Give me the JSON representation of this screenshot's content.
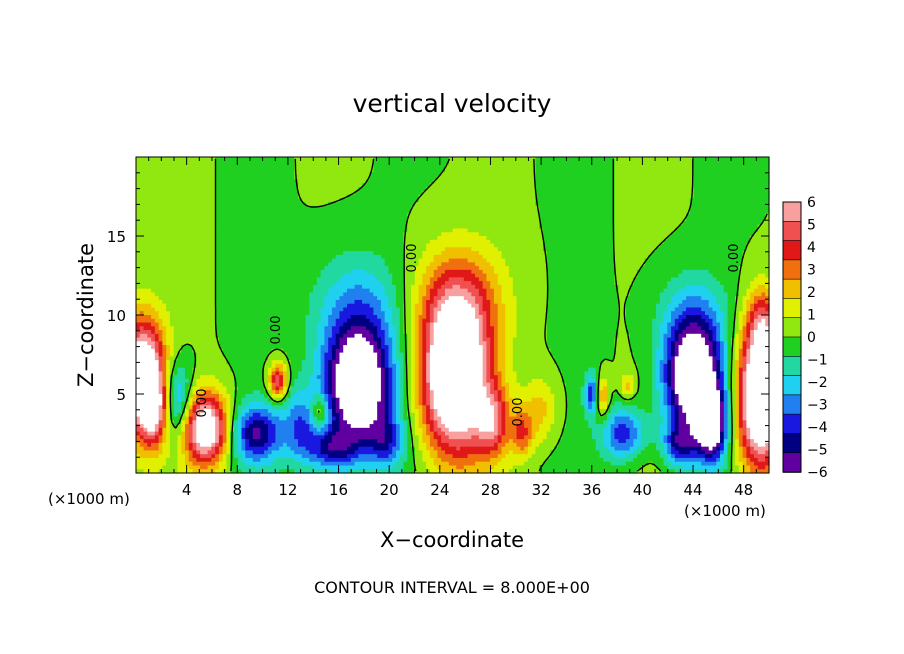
{
  "chart_data": {
    "type": "heatmap",
    "title": "vertical velocity",
    "xlabel": "X−coordinate",
    "ylabel": "Z−coordinate",
    "x_unit_left": "(×1000 m)",
    "x_unit_right": "(×1000 m)",
    "xlim": [
      0,
      50
    ],
    "ylim": [
      0,
      20
    ],
    "x_ticks": [
      4,
      8,
      12,
      16,
      20,
      24,
      28,
      32,
      36,
      40,
      44,
      48
    ],
    "y_ticks": [
      5,
      10,
      15
    ],
    "colorbar": {
      "min": -6,
      "max": 6,
      "tick_values": [
        6,
        5,
        4,
        3,
        2,
        1,
        0,
        -1,
        -2,
        -3,
        -4,
        -5,
        -6
      ],
      "tick_labels": [
        "6",
        "5",
        "4",
        "3",
        "2",
        "1",
        "0",
        "−1",
        "−2",
        "−3",
        "−4",
        "−5",
        "−6"
      ],
      "colors": [
        "#f8a0a0",
        "#f05050",
        "#e01818",
        "#f07010",
        "#f0c000",
        "#e0f000",
        "#90e810",
        "#20d020",
        "#20d8a0",
        "#20d0f0",
        "#2080f0",
        "#1818e0",
        "#000080",
        "#6000a0"
      ]
    },
    "contour_label": "0.00",
    "footer": "CONTOUR INTERVAL = 8.000E+00",
    "features": [
      {
        "x": 0.5,
        "z": 6.0,
        "w": 9,
        "sx": 1.3,
        "sz": 2.6
      },
      {
        "x": 1.5,
        "z": 4.0,
        "w": 4,
        "sx": 0.7,
        "sz": 1.5
      },
      {
        "x": 3.2,
        "z": 4.5,
        "w": -4,
        "sx": 0.9,
        "sz": 1.8
      },
      {
        "x": 5.5,
        "z": 2.8,
        "w": 8,
        "sx": 1.3,
        "sz": 1.6
      },
      {
        "x": 9.5,
        "z": 2.5,
        "w": -5,
        "sx": 1.4,
        "sz": 1.3
      },
      {
        "x": 11.2,
        "z": 5.8,
        "w": 5,
        "sx": 0.5,
        "sz": 0.8
      },
      {
        "x": 13.0,
        "z": 3.0,
        "w": -3,
        "sx": 1.0,
        "sz": 1.6
      },
      {
        "x": 14.5,
        "z": 3.8,
        "w": 3,
        "sx": 0.5,
        "sz": 0.8
      },
      {
        "x": 15.5,
        "z": 1.5,
        "w": -4,
        "sx": 1.5,
        "sz": 1.0
      },
      {
        "x": 17.5,
        "z": 5.5,
        "w": -9,
        "sx": 1.9,
        "sz": 2.6
      },
      {
        "x": 17.5,
        "z": 10.5,
        "w": -2.5,
        "sx": 2.5,
        "sz": 2.5
      },
      {
        "x": 19.8,
        "z": 2.0,
        "w": -3,
        "sx": 1.0,
        "sz": 1.2
      },
      {
        "x": 25.2,
        "z": 6.0,
        "w": 10,
        "sx": 1.9,
        "sz": 3.4
      },
      {
        "x": 25.5,
        "z": 11.0,
        "w": 3,
        "sx": 2.5,
        "sz": 2.5
      },
      {
        "x": 28.2,
        "z": 3.2,
        "w": 4,
        "sx": 0.9,
        "sz": 1.5
      },
      {
        "x": 30.5,
        "z": 2.5,
        "w": 3,
        "sx": 0.6,
        "sz": 1.1
      },
      {
        "x": 32.0,
        "z": 4.0,
        "w": 2,
        "sx": 1.0,
        "sz": 1.5
      },
      {
        "x": 36.0,
        "z": 5.0,
        "w": -4,
        "sx": 0.4,
        "sz": 0.9
      },
      {
        "x": 36.8,
        "z": 4.8,
        "w": 3,
        "sx": 0.4,
        "sz": 0.9
      },
      {
        "x": 38.5,
        "z": 2.5,
        "w": -4,
        "sx": 1.2,
        "sz": 1.2
      },
      {
        "x": 38.8,
        "z": 5.5,
        "w": 2,
        "sx": 0.4,
        "sz": 0.6
      },
      {
        "x": 44.0,
        "z": 6.0,
        "w": -9,
        "sx": 1.6,
        "sz": 2.4
      },
      {
        "x": 45.5,
        "z": 3.0,
        "w": -7,
        "sx": 0.8,
        "sz": 1.6
      },
      {
        "x": 43.0,
        "z": 1.8,
        "w": -4,
        "sx": 1.0,
        "sz": 1.0
      },
      {
        "x": 44.0,
        "z": 10.0,
        "w": -2,
        "sx": 2.0,
        "sz": 2.0
      },
      {
        "x": 49.3,
        "z": 4.8,
        "w": 10,
        "sx": 1.3,
        "sz": 3.2
      },
      {
        "x": 49.5,
        "z": 9.5,
        "w": 3,
        "sx": 0.8,
        "sz": 1.5
      }
    ]
  }
}
